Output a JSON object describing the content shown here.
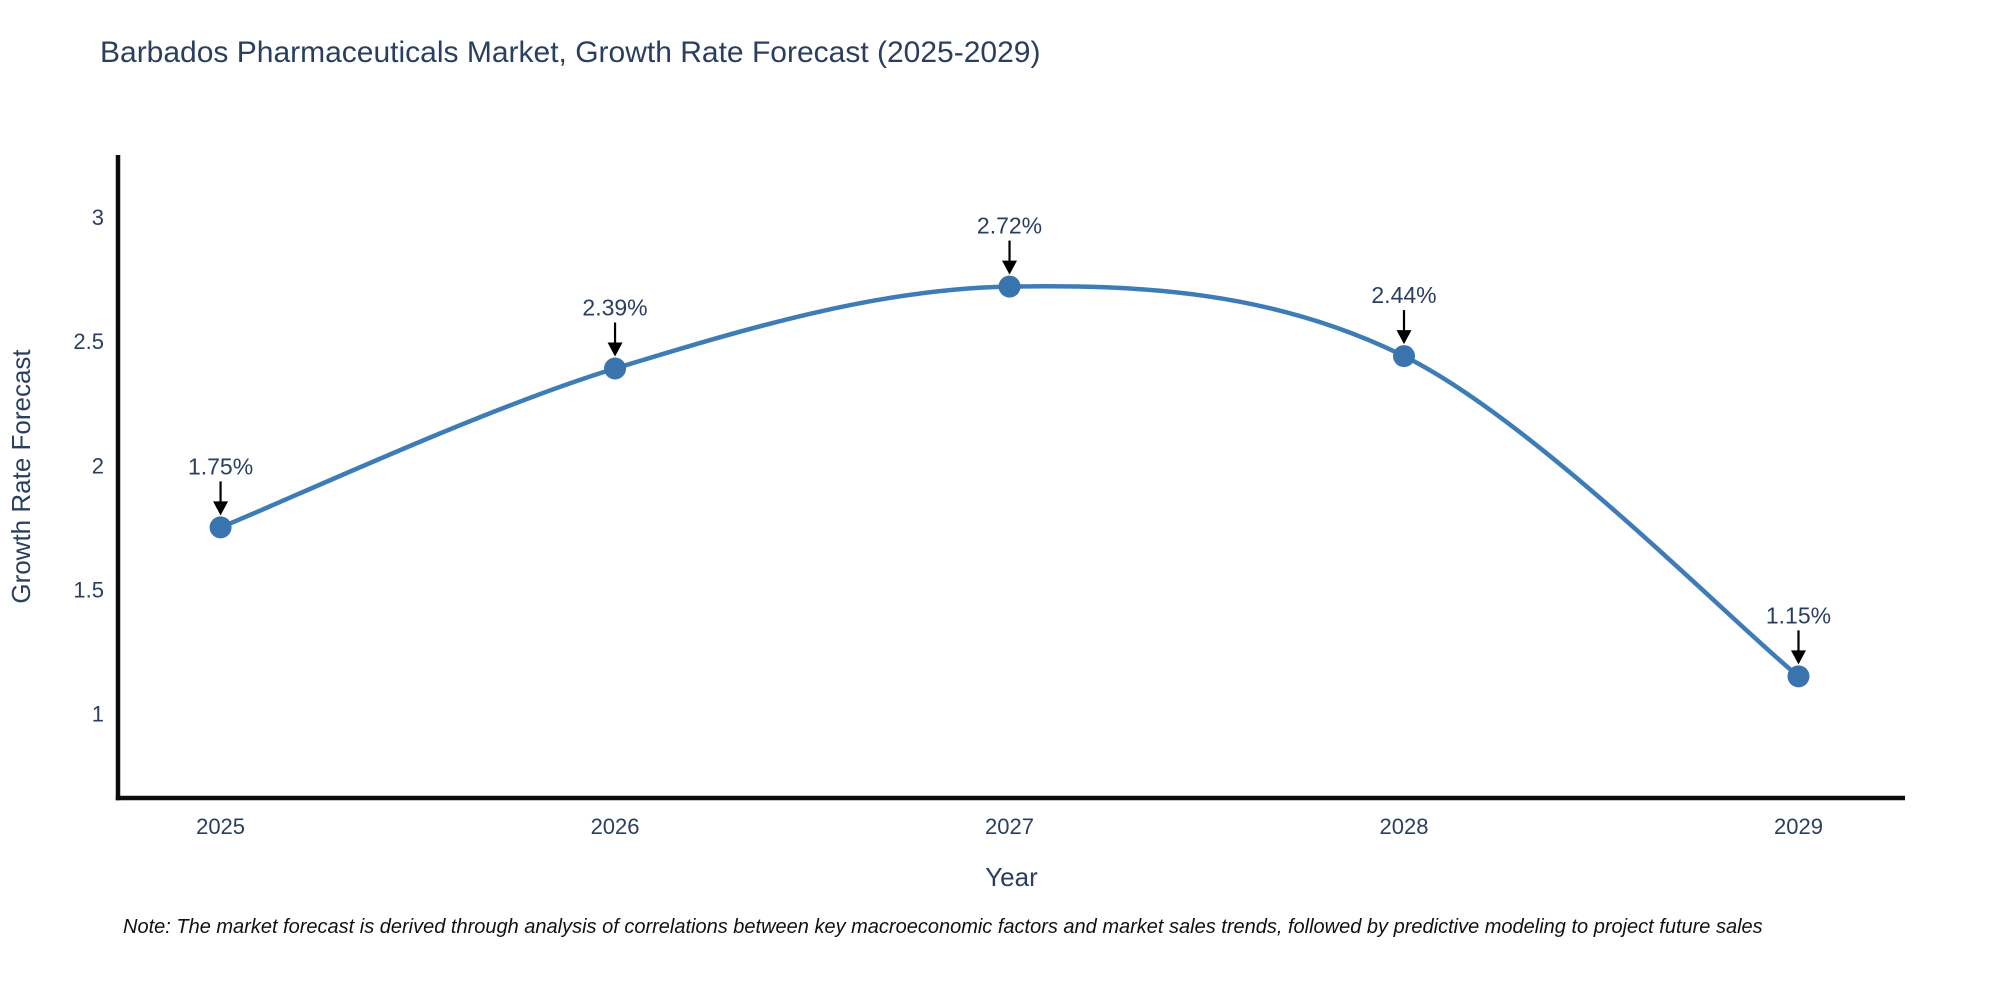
{
  "title": "Barbados Pharmaceuticals Market, Growth Rate Forecast (2025-2029)",
  "note": "Note: The market forecast is derived through analysis of correlations between key macroeconomic factors and market sales trends, followed by predictive modeling to project future sales",
  "chart_data": {
    "type": "line",
    "title": "Barbados Pharmaceuticals Market, Growth Rate Forecast (2025-2029)",
    "xlabel": "Year",
    "ylabel": "Growth Rate Forecast",
    "x": [
      2025,
      2026,
      2027,
      2028,
      2029
    ],
    "categories": [
      "2025",
      "2026",
      "2027",
      "2028",
      "2029"
    ],
    "values": [
      1.75,
      2.39,
      2.72,
      2.44,
      1.15
    ],
    "point_labels": [
      "1.75%",
      "2.39%",
      "2.72%",
      "2.44%",
      "1.15%"
    ],
    "yticks": [
      1,
      1.5,
      2,
      2.5,
      3
    ],
    "ytick_labels": [
      "1",
      "1.5",
      "2",
      "2.5",
      "3"
    ],
    "ylim": [
      0.66,
      3.25
    ],
    "xlim": [
      2024.74,
      2029.27
    ],
    "line_shape": "spline",
    "grid": false,
    "legend": "none",
    "colors": {
      "line": "#3e7cb8",
      "marker": "#3a74af",
      "axis": "#0d0d0d",
      "text": "#2a3f5f",
      "annotation_text": "#2a3f5f",
      "annotation_arrow": "#000000",
      "background": "#ffffff"
    }
  }
}
